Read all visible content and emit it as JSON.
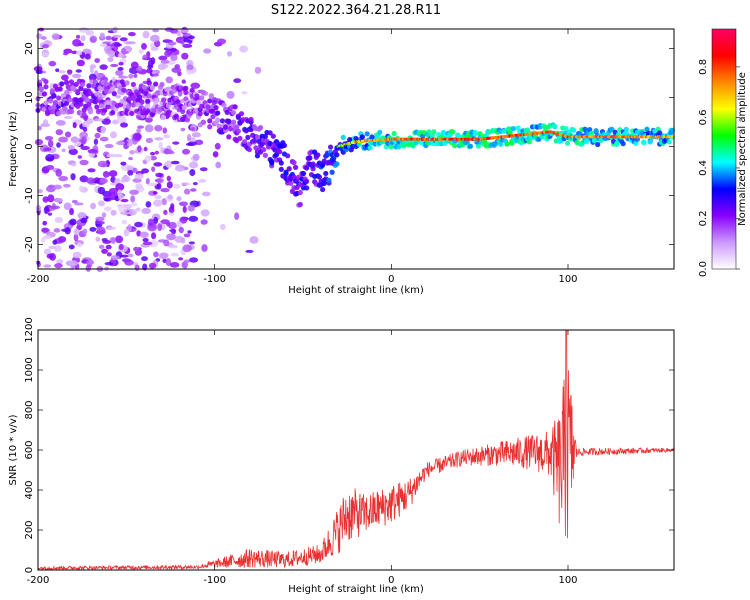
{
  "title": "S122.2022.364.21.28.R11",
  "chart_data": [
    {
      "type": "heatmap",
      "xlabel": "Height of straight line (km)",
      "ylabel": "Frequency (Hz)",
      "xlim": [
        -200,
        160
      ],
      "ylim": [
        -25,
        24
      ],
      "xticks": [
        -200,
        -100,
        0,
        100
      ],
      "yticks": [
        -20,
        -10,
        0,
        10,
        20
      ],
      "colorbar": {
        "label": "Normalized spectral amplitude",
        "range": [
          0,
          0.95
        ],
        "ticks": [
          "0.0",
          "0.2",
          "0.4",
          "0.6",
          "0.8"
        ],
        "colors": [
          "#ffffff",
          "#cc99ff",
          "#8800ff",
          "#0000ff",
          "#00ffff",
          "#00ff00",
          "#ffff00",
          "#ff8800",
          "#ff0000",
          "#ff0066"
        ]
      },
      "ridge": [
        {
          "x": -170,
          "y": 10,
          "a": 0.35
        },
        {
          "x": -150,
          "y": 10,
          "a": 0.3
        },
        {
          "x": -120,
          "y": 9,
          "a": 0.3
        },
        {
          "x": -100,
          "y": 7,
          "a": 0.35
        },
        {
          "x": -85,
          "y": 4,
          "a": 0.4
        },
        {
          "x": -70,
          "y": 0,
          "a": 0.45
        },
        {
          "x": -60,
          "y": -3,
          "a": 0.5
        },
        {
          "x": -52,
          "y": -9,
          "a": 0.45
        },
        {
          "x": -45,
          "y": -4,
          "a": 0.5
        },
        {
          "x": -38,
          "y": -6,
          "a": 0.55
        },
        {
          "x": -30,
          "y": 0,
          "a": 0.6
        },
        {
          "x": -20,
          "y": 1,
          "a": 0.7
        },
        {
          "x": 0,
          "y": 1.5,
          "a": 0.8
        },
        {
          "x": 50,
          "y": 1.5,
          "a": 0.85
        },
        {
          "x": 90,
          "y": 3,
          "a": 0.8
        },
        {
          "x": 100,
          "y": 2,
          "a": 0.8
        },
        {
          "x": 160,
          "y": 2,
          "a": 0.75
        }
      ]
    },
    {
      "type": "line",
      "xlabel": "Height of straight line (km)",
      "ylabel": "SNR (10 * v/v)",
      "xlim": [
        -200,
        160
      ],
      "ylim": [
        0,
        1200
      ],
      "xticks": [
        -200,
        -100,
        0,
        100
      ],
      "yticks": [
        0,
        200,
        400,
        600,
        800,
        1000,
        1200
      ],
      "color": "#e83030",
      "envelope": [
        {
          "x": -200,
          "mean": 10,
          "noise": 8
        },
        {
          "x": -110,
          "mean": 15,
          "noise": 10
        },
        {
          "x": -100,
          "mean": 30,
          "noise": 20
        },
        {
          "x": -80,
          "mean": 60,
          "noise": 50
        },
        {
          "x": -60,
          "mean": 50,
          "noise": 40
        },
        {
          "x": -40,
          "mean": 80,
          "noise": 50
        },
        {
          "x": -30,
          "mean": 200,
          "noise": 120
        },
        {
          "x": -25,
          "mean": 280,
          "noise": 150
        },
        {
          "x": -15,
          "mean": 280,
          "noise": 100
        },
        {
          "x": 0,
          "mean": 330,
          "noise": 100
        },
        {
          "x": 10,
          "mean": 380,
          "noise": 80
        },
        {
          "x": 20,
          "mean": 500,
          "noise": 40
        },
        {
          "x": 40,
          "mean": 560,
          "noise": 40
        },
        {
          "x": 60,
          "mean": 580,
          "noise": 60
        },
        {
          "x": 80,
          "mean": 590,
          "noise": 90
        },
        {
          "x": 90,
          "mean": 580,
          "noise": 120
        },
        {
          "x": 95,
          "mean": 500,
          "noise": 300
        },
        {
          "x": 100,
          "mean": 600,
          "noise": 500
        },
        {
          "x": 105,
          "mean": 590,
          "noise": 20
        },
        {
          "x": 160,
          "mean": 600,
          "noise": 10
        }
      ],
      "peak": {
        "x": 99,
        "y": 1200
      }
    }
  ]
}
